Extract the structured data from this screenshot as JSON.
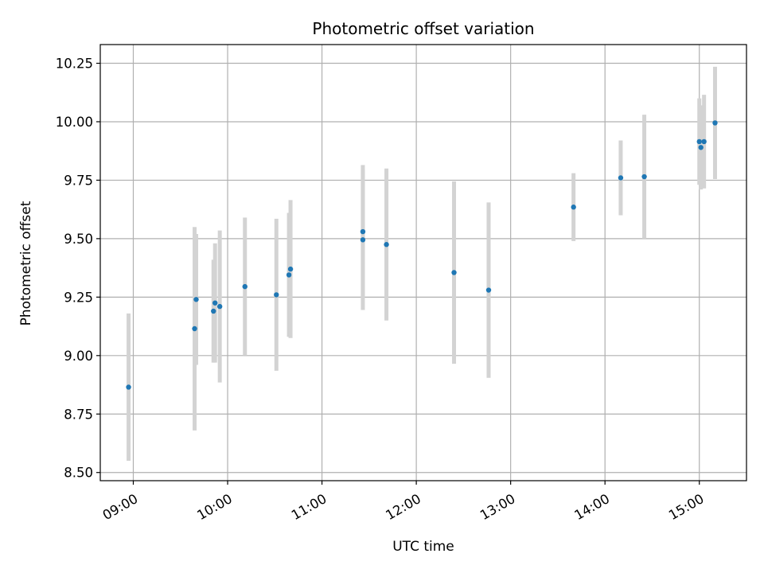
{
  "chart_data": {
    "type": "scatter",
    "title": "Photometric offset variation",
    "xlabel": "UTC time",
    "ylabel": "Photometric offset",
    "x_axis": {
      "kind": "time",
      "range_hours": [
        8.65,
        15.5
      ],
      "ticks": [
        {
          "hour": 9,
          "label": "09:00"
        },
        {
          "hour": 10,
          "label": "10:00"
        },
        {
          "hour": 11,
          "label": "11:00"
        },
        {
          "hour": 12,
          "label": "12:00"
        },
        {
          "hour": 13,
          "label": "13:00"
        },
        {
          "hour": 14,
          "label": "14:00"
        },
        {
          "hour": 15,
          "label": "15:00"
        }
      ]
    },
    "y_axis": {
      "range": [
        8.465,
        10.33
      ],
      "ticks": [
        {
          "value": 8.5,
          "label": "8.50"
        },
        {
          "value": 8.75,
          "label": "8.75"
        },
        {
          "value": 9.0,
          "label": "9.00"
        },
        {
          "value": 9.25,
          "label": "9.25"
        },
        {
          "value": 9.5,
          "label": "9.50"
        },
        {
          "value": 9.75,
          "label": "9.75"
        },
        {
          "value": 10.0,
          "label": "10.00"
        },
        {
          "value": 10.25,
          "label": "10.25"
        }
      ]
    },
    "grid": true,
    "colors": {
      "point": "#1f77b4",
      "errorbar": "#d3d3d3",
      "grid": "#b0b0b0"
    },
    "points": [
      {
        "x": "08:57",
        "y": 8.865,
        "err": 0.315
      },
      {
        "x": "09:39",
        "y": 9.115,
        "err": 0.435
      },
      {
        "x": "09:40",
        "y": 9.24,
        "err": 0.28
      },
      {
        "x": "09:51",
        "y": 9.19,
        "err": 0.22
      },
      {
        "x": "09:52",
        "y": 9.225,
        "err": 0.255
      },
      {
        "x": "09:55",
        "y": 9.21,
        "err": 0.325
      },
      {
        "x": "10:11",
        "y": 9.295,
        "err": 0.295
      },
      {
        "x": "10:31",
        "y": 9.26,
        "err": 0.325
      },
      {
        "x": "10:39",
        "y": 9.345,
        "err": 0.265
      },
      {
        "x": "10:40",
        "y": 9.37,
        "err": 0.295
      },
      {
        "x": "11:26",
        "y": 9.53,
        "err": 0.285
      },
      {
        "x": "11:26",
        "y": 9.495,
        "err": 0.3
      },
      {
        "x": "11:41",
        "y": 9.475,
        "err": 0.325
      },
      {
        "x": "12:24",
        "y": 9.355,
        "err": 0.39
      },
      {
        "x": "12:46",
        "y": 9.28,
        "err": 0.375
      },
      {
        "x": "13:40",
        "y": 9.635,
        "err": 0.145
      },
      {
        "x": "14:10",
        "y": 9.76,
        "err": 0.16
      },
      {
        "x": "14:25",
        "y": 9.765,
        "err": 0.265
      },
      {
        "x": "15:00",
        "y": 9.915,
        "err": 0.185
      },
      {
        "x": "15:01",
        "y": 9.89,
        "err": 0.18
      },
      {
        "x": "15:03",
        "y": 9.915,
        "err": 0.2
      },
      {
        "x": "15:10",
        "y": 9.995,
        "err": 0.24
      }
    ]
  }
}
